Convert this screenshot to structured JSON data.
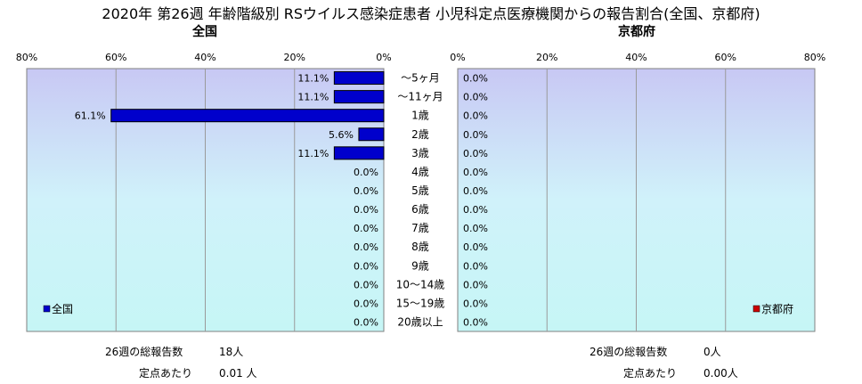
{
  "title": "2020年 第26週 年齢階級別 RSウイルス感染症患者 小児科定点医療機関からの報告割合(全国、京都府)",
  "chart_data": [
    {
      "type": "bar",
      "orientation": "horizontal",
      "direction": "right-to-left",
      "title": "全国",
      "categories": [
        "～5ヶ月",
        "～11ヶ月",
        "1歳",
        "2歳",
        "3歳",
        "4歳",
        "5歳",
        "6歳",
        "7歳",
        "8歳",
        "9歳",
        "10～14歳",
        "15～19歳",
        "20歳以上"
      ],
      "series": [
        {
          "name": "全国",
          "color": "#0000cc",
          "values": [
            11.1,
            11.1,
            61.1,
            5.6,
            11.1,
            0.0,
            0.0,
            0.0,
            0.0,
            0.0,
            0.0,
            0.0,
            0.0,
            0.0
          ],
          "labels": [
            "11.1%",
            "11.1%",
            "61.1%",
            "5.6%",
            "11.1%",
            "0.0%",
            "0.0%",
            "0.0%",
            "0.0%",
            "0.0%",
            "0.0%",
            "0.0%",
            "0.0%",
            "0.0%"
          ]
        }
      ],
      "xlim": [
        0,
        80
      ],
      "xticks": [
        "0%",
        "20%",
        "40%",
        "60%",
        "80%"
      ],
      "grid": true,
      "legend_position": "bottom-left"
    },
    {
      "type": "bar",
      "orientation": "horizontal",
      "direction": "left-to-right",
      "title": "京都府",
      "categories": [
        "～5ヶ月",
        "～11ヶ月",
        "1歳",
        "2歳",
        "3歳",
        "4歳",
        "5歳",
        "6歳",
        "7歳",
        "8歳",
        "9歳",
        "10～14歳",
        "15～19歳",
        "20歳以上"
      ],
      "series": [
        {
          "name": "京都府",
          "color": "#cc0000",
          "values": [
            0.0,
            0.0,
            0.0,
            0.0,
            0.0,
            0.0,
            0.0,
            0.0,
            0.0,
            0.0,
            0.0,
            0.0,
            0.0,
            0.0
          ],
          "labels": [
            "0.0%",
            "0.0%",
            "0.0%",
            "0.0%",
            "0.0%",
            "0.0%",
            "0.0%",
            "0.0%",
            "0.0%",
            "0.0%",
            "0.0%",
            "0.0%",
            "0.0%",
            "0.0%"
          ]
        }
      ],
      "xlim": [
        0,
        80
      ],
      "xticks": [
        "0%",
        "20%",
        "40%",
        "60%",
        "80%"
      ],
      "grid": true,
      "legend_position": "bottom-right"
    }
  ],
  "footer": {
    "left": {
      "total_label": "26週の総報告数",
      "total_value": "18人",
      "per_label": "定点あたり",
      "per_value": "0.01 人"
    },
    "right": {
      "total_label": "26週の総報告数",
      "total_value": "0人",
      "per_label": "定点あたり",
      "per_value": "0.00人"
    }
  }
}
